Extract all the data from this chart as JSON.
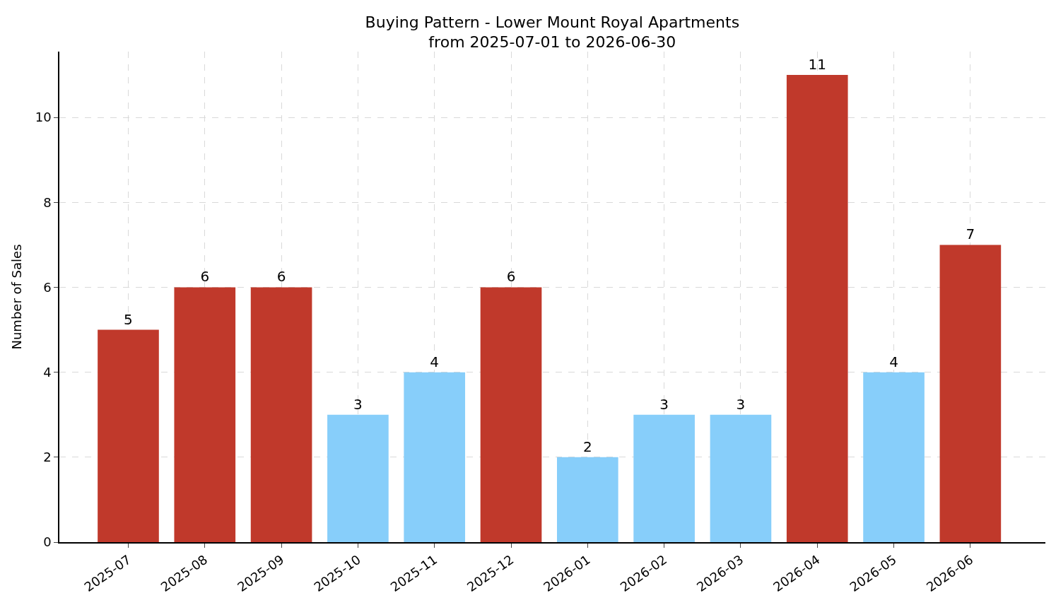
{
  "chart_data": {
    "type": "bar",
    "title": "Buying Pattern - Lower Mount Royal Apartments",
    "subtitle": "from 2025-07-01 to 2026-06-30",
    "ylabel": "Number of Sales",
    "categories": [
      "2025-07",
      "2025-08",
      "2025-09",
      "2025-10",
      "2025-11",
      "2025-12",
      "2026-01",
      "2026-02",
      "2026-03",
      "2026-04",
      "2026-05",
      "2026-06"
    ],
    "values": [
      5,
      6,
      6,
      3,
      4,
      6,
      2,
      3,
      3,
      11,
      4,
      7
    ],
    "colors": [
      "#c0392b",
      "#c0392b",
      "#c0392b",
      "#87cefa",
      "#87cefa",
      "#c0392b",
      "#87cefa",
      "#87cefa",
      "#87cefa",
      "#c0392b",
      "#87cefa",
      "#c0392b"
    ],
    "ylim": [
      0,
      11.55
    ],
    "yticks": [
      0,
      2,
      4,
      6,
      8,
      10
    ],
    "grid": true,
    "data_labels": true
  }
}
